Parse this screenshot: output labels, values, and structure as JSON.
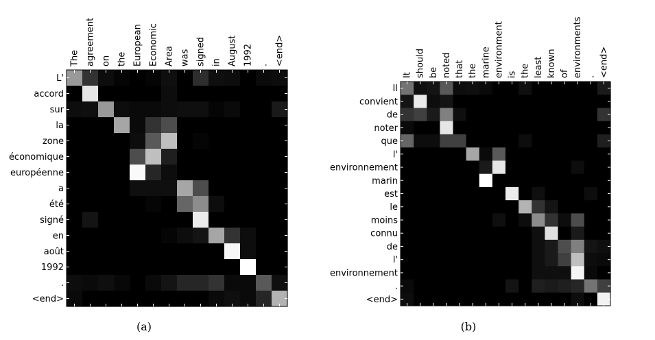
{
  "chart_data": [
    {
      "type": "heatmap",
      "caption": "(a)",
      "x_labels": [
        "The",
        "agreement",
        "on",
        "the",
        "European",
        "Economic",
        "Area",
        "was",
        "signed",
        "in",
        "August",
        "1992",
        ".",
        "<end>"
      ],
      "y_labels": [
        "L'",
        "accord",
        "sur",
        "la",
        "zone",
        "économique",
        "européenne",
        "a",
        "été",
        "signé",
        "en",
        "août",
        "1992",
        ".",
        "<end>"
      ],
      "values": [
        [
          0.6,
          0.2,
          0.05,
          0.02,
          0.0,
          0.02,
          0.06,
          0.0,
          0.18,
          0.06,
          0.05,
          0.0,
          0.04,
          0.05
        ],
        [
          0.0,
          0.9,
          0.0,
          0.0,
          0.0,
          0.0,
          0.05,
          0.0,
          0.0,
          0.0,
          0.0,
          0.0,
          0.0,
          0.0
        ],
        [
          0.05,
          0.06,
          0.6,
          0.05,
          0.04,
          0.04,
          0.05,
          0.06,
          0.06,
          0.02,
          0.04,
          0.0,
          0.0,
          0.1
        ],
        [
          0.0,
          0.0,
          0.0,
          0.65,
          0.04,
          0.2,
          0.3,
          0.0,
          0.0,
          0.0,
          0.0,
          0.0,
          0.0,
          0.0
        ],
        [
          0.0,
          0.0,
          0.0,
          0.0,
          0.05,
          0.35,
          0.75,
          0.0,
          0.02,
          0.0,
          0.0,
          0.0,
          0.0,
          0.0
        ],
        [
          0.0,
          0.0,
          0.0,
          0.0,
          0.3,
          0.75,
          0.12,
          0.0,
          0.0,
          0.0,
          0.0,
          0.0,
          0.0,
          0.0
        ],
        [
          0.0,
          0.0,
          0.0,
          0.0,
          0.98,
          0.15,
          0.05,
          0.0,
          0.0,
          0.0,
          0.0,
          0.0,
          0.0,
          0.0
        ],
        [
          0.0,
          0.0,
          0.0,
          0.0,
          0.06,
          0.06,
          0.06,
          0.65,
          0.3,
          0.0,
          0.0,
          0.0,
          0.0,
          0.0
        ],
        [
          0.0,
          0.0,
          0.0,
          0.0,
          0.0,
          0.02,
          0.0,
          0.4,
          0.55,
          0.05,
          0.0,
          0.0,
          0.0,
          0.0
        ],
        [
          0.0,
          0.08,
          0.0,
          0.0,
          0.0,
          0.0,
          0.0,
          0.0,
          0.92,
          0.0,
          0.0,
          0.0,
          0.0,
          0.0
        ],
        [
          0.0,
          0.0,
          0.0,
          0.0,
          0.0,
          0.0,
          0.02,
          0.05,
          0.08,
          0.65,
          0.2,
          0.05,
          0.0,
          0.0
        ],
        [
          0.0,
          0.0,
          0.0,
          0.0,
          0.0,
          0.0,
          0.0,
          0.0,
          0.0,
          0.0,
          0.97,
          0.05,
          0.0,
          0.0
        ],
        [
          0.0,
          0.0,
          0.0,
          0.0,
          0.0,
          0.0,
          0.0,
          0.0,
          0.0,
          0.0,
          0.0,
          1.0,
          0.0,
          0.0
        ],
        [
          0.05,
          0.04,
          0.06,
          0.03,
          0.0,
          0.04,
          0.08,
          0.15,
          0.15,
          0.2,
          0.04,
          0.04,
          0.35,
          0.06
        ],
        [
          0.04,
          0.0,
          0.0,
          0.0,
          0.0,
          0.0,
          0.0,
          0.0,
          0.0,
          0.04,
          0.06,
          0.04,
          0.15,
          0.7
        ]
      ]
    },
    {
      "type": "heatmap",
      "caption": "(b)",
      "x_labels": [
        "It",
        "should",
        "be",
        "noted",
        "that",
        "the",
        "marine",
        "environment",
        "is",
        "the",
        "least",
        "known",
        "of",
        "environments",
        ".",
        "<end>"
      ],
      "y_labels": [
        "Il",
        "convient",
        "de",
        "noter",
        "que",
        "l'",
        "environnement",
        "marin",
        "est",
        "le",
        "moins",
        "connu",
        "de",
        "l'",
        "environnement",
        ".",
        "<end>"
      ],
      "values": [
        [
          0.45,
          0.06,
          0.08,
          0.35,
          0.05,
          0.06,
          0.04,
          0.0,
          0.0,
          0.06,
          0.0,
          0.0,
          0.0,
          0.0,
          0.0,
          0.1
        ],
        [
          0.08,
          0.92,
          0.05,
          0.08,
          0.0,
          0.0,
          0.0,
          0.0,
          0.0,
          0.0,
          0.0,
          0.0,
          0.0,
          0.0,
          0.0,
          0.0
        ],
        [
          0.2,
          0.25,
          0.1,
          0.5,
          0.06,
          0.0,
          0.0,
          0.0,
          0.0,
          0.0,
          0.0,
          0.0,
          0.0,
          0.0,
          0.0,
          0.2
        ],
        [
          0.04,
          0.0,
          0.0,
          0.9,
          0.0,
          0.0,
          0.0,
          0.0,
          0.0,
          0.0,
          0.0,
          0.0,
          0.0,
          0.0,
          0.0,
          0.0
        ],
        [
          0.4,
          0.05,
          0.05,
          0.25,
          0.25,
          0.0,
          0.0,
          0.0,
          0.0,
          0.05,
          0.0,
          0.0,
          0.0,
          0.0,
          0.0,
          0.12
        ],
        [
          0.0,
          0.0,
          0.0,
          0.0,
          0.0,
          0.65,
          0.04,
          0.35,
          0.0,
          0.0,
          0.0,
          0.0,
          0.0,
          0.0,
          0.0,
          0.0
        ],
        [
          0.0,
          0.0,
          0.0,
          0.0,
          0.0,
          0.0,
          0.1,
          0.9,
          0.0,
          0.0,
          0.0,
          0.0,
          0.0,
          0.05,
          0.0,
          0.0
        ],
        [
          0.0,
          0.0,
          0.0,
          0.0,
          0.0,
          0.0,
          1.0,
          0.0,
          0.0,
          0.0,
          0.0,
          0.0,
          0.0,
          0.0,
          0.0,
          0.0
        ],
        [
          0.0,
          0.0,
          0.0,
          0.0,
          0.0,
          0.0,
          0.0,
          0.0,
          0.92,
          0.0,
          0.06,
          0.0,
          0.0,
          0.0,
          0.05,
          0.0
        ],
        [
          0.0,
          0.0,
          0.0,
          0.0,
          0.0,
          0.0,
          0.0,
          0.0,
          0.0,
          0.7,
          0.2,
          0.08,
          0.0,
          0.0,
          0.0,
          0.0
        ],
        [
          0.0,
          0.0,
          0.0,
          0.0,
          0.0,
          0.0,
          0.0,
          0.06,
          0.0,
          0.05,
          0.55,
          0.2,
          0.05,
          0.3,
          0.0,
          0.0
        ],
        [
          0.0,
          0.0,
          0.0,
          0.0,
          0.0,
          0.0,
          0.0,
          0.0,
          0.0,
          0.0,
          0.06,
          0.88,
          0.0,
          0.1,
          0.0,
          0.0
        ],
        [
          0.0,
          0.0,
          0.0,
          0.0,
          0.0,
          0.0,
          0.0,
          0.0,
          0.0,
          0.0,
          0.06,
          0.1,
          0.3,
          0.5,
          0.08,
          0.06
        ],
        [
          0.0,
          0.0,
          0.0,
          0.0,
          0.0,
          0.0,
          0.0,
          0.0,
          0.0,
          0.0,
          0.06,
          0.1,
          0.25,
          0.75,
          0.05,
          0.04
        ],
        [
          0.0,
          0.0,
          0.0,
          0.0,
          0.0,
          0.0,
          0.0,
          0.0,
          0.0,
          0.0,
          0.06,
          0.06,
          0.06,
          0.96,
          0.04,
          0.0
        ],
        [
          0.04,
          0.0,
          0.0,
          0.0,
          0.0,
          0.0,
          0.0,
          0.0,
          0.08,
          0.0,
          0.12,
          0.1,
          0.12,
          0.15,
          0.45,
          0.25
        ],
        [
          0.05,
          0.0,
          0.0,
          0.0,
          0.0,
          0.0,
          0.0,
          0.0,
          0.0,
          0.0,
          0.0,
          0.0,
          0.0,
          0.05,
          0.0,
          0.95
        ]
      ]
    }
  ]
}
